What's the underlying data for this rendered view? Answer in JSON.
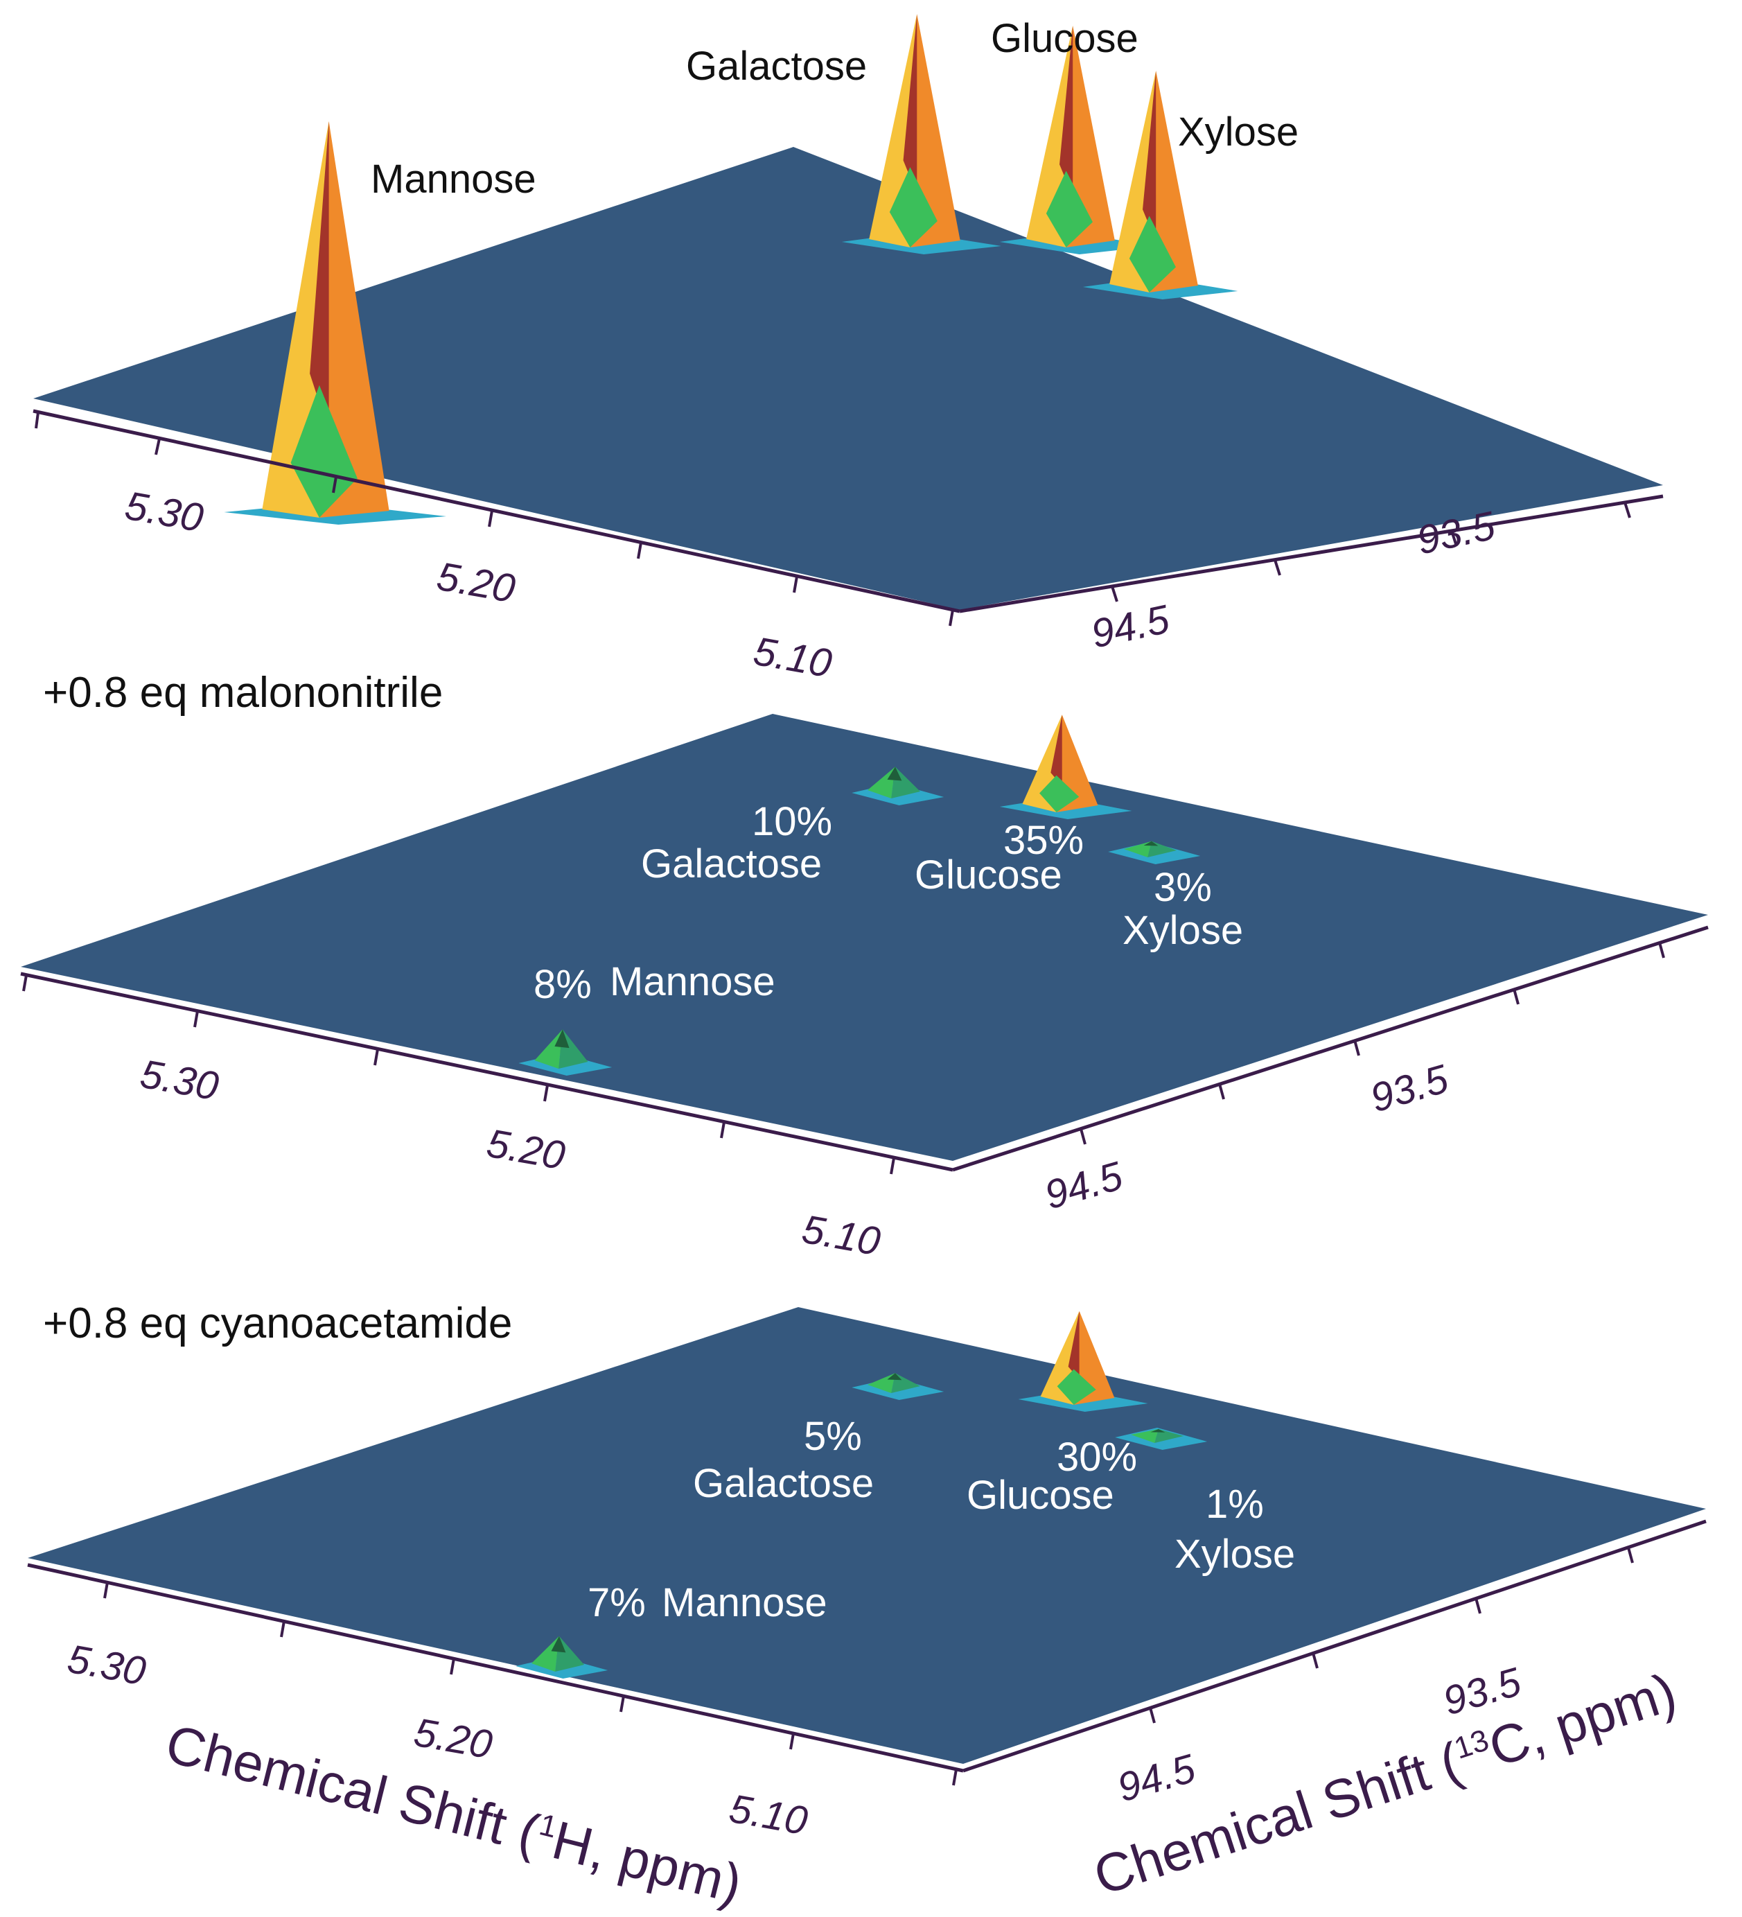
{
  "chart_data": [
    {
      "type": "surface3d",
      "condition_label": "",
      "x_axis": {
        "ticks": [
          "5.30",
          "5.20",
          "5.10"
        ]
      },
      "y_axis": {
        "ticks": [
          "94.5",
          "93.5"
        ]
      },
      "peaks": [
        {
          "sugar": "Mannose",
          "label": "Mannose",
          "percent_label": "",
          "height": 1.0
        },
        {
          "sugar": "Galactose",
          "label": "Galactose",
          "percent_label": "",
          "height": 0.58
        },
        {
          "sugar": "Glucose",
          "label": "Glucose",
          "percent_label": "",
          "height": 0.55
        },
        {
          "sugar": "Xylose",
          "label": "Xylose",
          "percent_label": "",
          "height": 0.55
        }
      ]
    },
    {
      "type": "surface3d",
      "condition_label": "+0.8 eq malononitrile",
      "x_axis": {
        "ticks": [
          "5.30",
          "5.20",
          "5.10"
        ]
      },
      "y_axis": {
        "ticks": [
          "94.5",
          "93.5"
        ]
      },
      "peaks": [
        {
          "sugar": "Mannose",
          "label": "Mannose",
          "percent_label": "8%",
          "height": 0.08
        },
        {
          "sugar": "Galactose",
          "label": "Galactose",
          "percent_label": "10%",
          "height": 0.06
        },
        {
          "sugar": "Glucose",
          "label": "Glucose",
          "percent_label": "35%",
          "height": 0.23
        },
        {
          "sugar": "Xylose",
          "label": "Xylose",
          "percent_label": "3%",
          "height": 0.02
        }
      ]
    },
    {
      "type": "surface3d",
      "condition_label": "+0.8 eq cyanoacetamide",
      "x_axis": {
        "ticks": [
          "5.30",
          "5.20",
          "5.10"
        ]
      },
      "y_axis": {
        "ticks": [
          "94.5",
          "93.5"
        ]
      },
      "peaks": [
        {
          "sugar": "Mannose",
          "label": "Mannose",
          "percent_label": "7%",
          "height": 0.07
        },
        {
          "sugar": "Galactose",
          "label": "Galactose",
          "percent_label": "5%",
          "height": 0.03
        },
        {
          "sugar": "Glucose",
          "label": "Glucose",
          "percent_label": "30%",
          "height": 0.22
        },
        {
          "sugar": "Xylose",
          "label": "Xylose",
          "percent_label": "1%",
          "height": 0.01
        }
      ]
    }
  ],
  "axes_titles": {
    "x_prefix": "Chemical Shift (",
    "x_sup": "1",
    "x_suffix": "H, ppm)",
    "y_prefix": "Chemical Shift (",
    "y_sup": "13",
    "y_suffix": "C, ppm)"
  },
  "colors": {
    "plane": "#35587e",
    "axis": "#3a1c4a",
    "peak_top": "#f08a2a",
    "peak_mid": "#f6c23a",
    "peak_low": "#3bbf5a",
    "peak_base": "#2fa9c9",
    "peak_dark": "#a3342a"
  }
}
